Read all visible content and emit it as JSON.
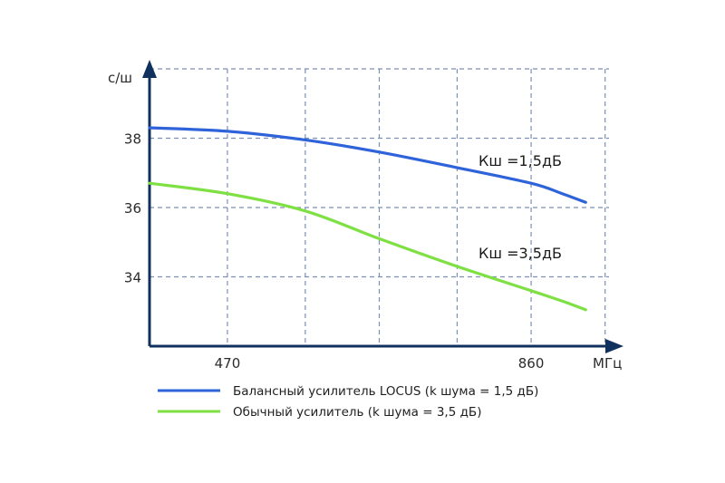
{
  "chart_data": {
    "type": "line",
    "ylabel": "с/ш",
    "xunit": "МГц",
    "xlim": [
      370,
      960
    ],
    "ylim": [
      32,
      40
    ],
    "xticks": [
      {
        "value": 470,
        "label": "470"
      },
      {
        "value": 860,
        "label": "860"
      }
    ],
    "yticks": [
      {
        "value": 34,
        "label": "34"
      },
      {
        "value": 36,
        "label": "36"
      },
      {
        "value": 38,
        "label": "38"
      }
    ],
    "grid_x": [
      470,
      570,
      665,
      765,
      860,
      955
    ],
    "grid_y": [
      34,
      36,
      38,
      40
    ],
    "grid": true,
    "legend_position": "bottom",
    "series": [
      {
        "name": "Балансный усилитель LOCUS (k шума = 1,5 дБ)",
        "annotation": "Кш =1,5дБ",
        "color": "#2f63d9",
        "x": [
          370,
          470,
          570,
          665,
          765,
          860,
          900,
          930
        ],
        "y": [
          38.3,
          38.2,
          37.95,
          37.6,
          37.15,
          36.7,
          36.4,
          36.15
        ]
      },
      {
        "name": "Обычный усилитель (k шума = 3,5 дБ)",
        "annotation": "Кш =3,5дБ",
        "color": "#7ee043",
        "x": [
          370,
          470,
          570,
          665,
          765,
          860,
          900,
          930
        ],
        "y": [
          36.7,
          36.4,
          35.9,
          35.1,
          34.3,
          33.6,
          33.3,
          33.05
        ]
      }
    ]
  }
}
